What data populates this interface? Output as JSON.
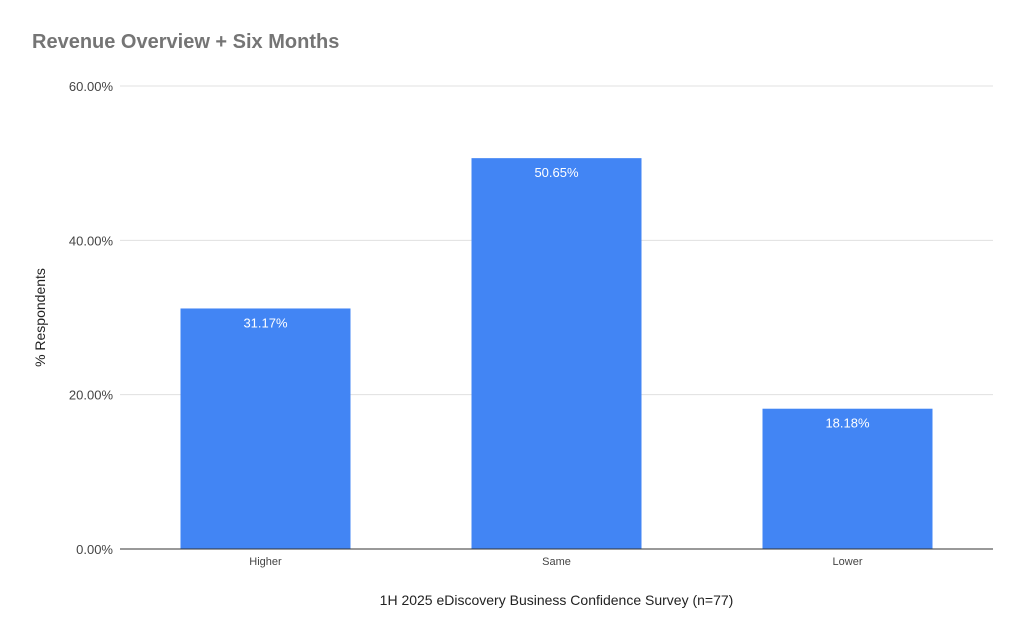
{
  "chart_data": {
    "type": "bar",
    "title": "Revenue Overview + Six Months",
    "xlabel": "1H 2025 eDiscovery Business Confidence Survey (n=77)",
    "ylabel": "% Respondents",
    "categories": [
      "Higher",
      "Same",
      "Lower"
    ],
    "values": [
      31.17,
      50.65,
      18.18
    ],
    "data_labels": [
      "31.17%",
      "50.65%",
      "18.18%"
    ],
    "ylim": [
      0,
      60
    ],
    "yticks": [
      0,
      20,
      40,
      60
    ],
    "ytick_labels": [
      "0.00%",
      "20.00%",
      "40.00%",
      "60.00%"
    ],
    "bar_color": "#4285f4",
    "grid": true,
    "legend": "none"
  }
}
